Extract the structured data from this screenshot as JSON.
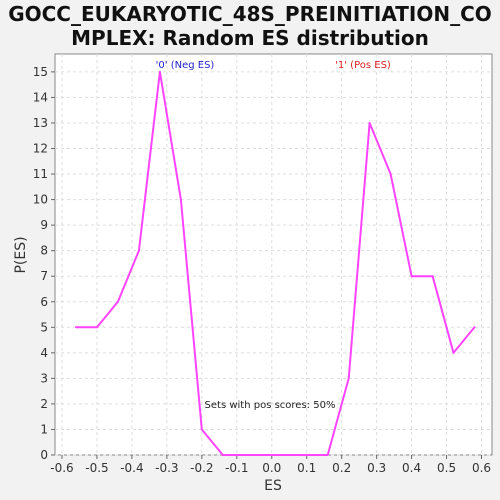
{
  "chart_data": {
    "type": "line",
    "title_line1": "GOCC_EUKARYOTIC_48S_PREINITIATION_CO",
    "title_line2": "MPLEX: Random ES distribution",
    "xlabel": "ES",
    "ylabel": "P(ES)",
    "xlim": [
      -0.62,
      0.63
    ],
    "ylim": [
      0,
      15.7
    ],
    "xticks": [
      "-0.6",
      "-0.5",
      "-0.4",
      "-0.3",
      "-0.2",
      "-0.1",
      "0.0",
      "0.1",
      "0.2",
      "0.3",
      "0.4",
      "0.5",
      "0.6"
    ],
    "xtick_values": [
      -0.6,
      -0.5,
      -0.4,
      -0.3,
      -0.2,
      -0.1,
      0.0,
      0.1,
      0.2,
      0.3,
      0.4,
      0.5,
      0.6
    ],
    "yticks": [
      0,
      1,
      2,
      3,
      4,
      5,
      6,
      7,
      8,
      9,
      10,
      11,
      12,
      13,
      14,
      15
    ],
    "grid": true,
    "line_color": "#ff44ff",
    "series": [
      {
        "x": [
          -0.56,
          -0.5,
          -0.44,
          -0.38,
          -0.32,
          -0.26,
          -0.2,
          -0.14,
          -0.08,
          -0.02,
          0.04,
          0.1,
          0.16,
          0.22,
          0.28,
          0.34,
          0.4,
          0.46,
          0.52,
          0.58
        ],
        "values": [
          5,
          5,
          6,
          8,
          15,
          10,
          1,
          0,
          0,
          0,
          0,
          0,
          0,
          3,
          13,
          11,
          7,
          7,
          4,
          5
        ]
      }
    ],
    "annotations": {
      "neg_label": "'0' (Neg ES)",
      "neg_color": "#2222cc",
      "pos_label": "'1' (Pos ES)",
      "pos_color": "#dd2222",
      "pos_scores_text": "Sets with pos scores: 50%"
    }
  }
}
